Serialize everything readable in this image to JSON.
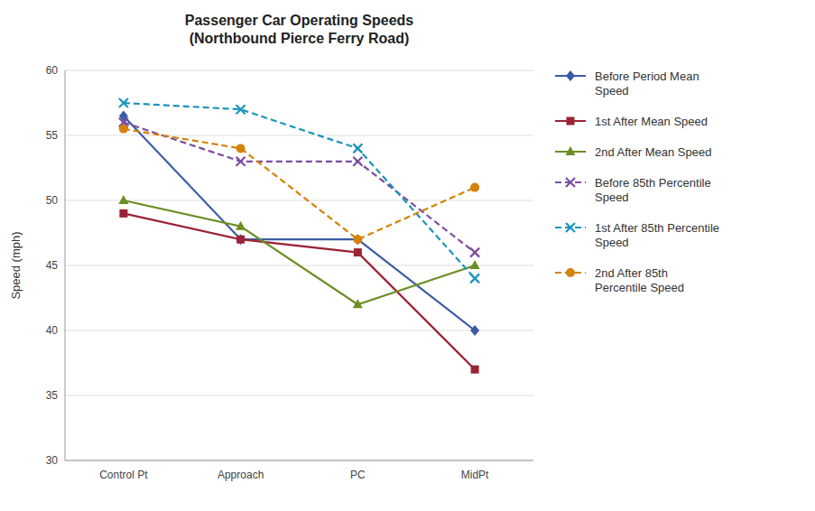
{
  "chart_data": {
    "type": "line",
    "title": "Passenger Car Operating Speeds\n(Northbound Pierce Ferry Road)",
    "y_label": "Speed (mph)",
    "categories": [
      "Control Pt",
      "Approach",
      "PC",
      "MidPt"
    ],
    "ylim": [
      30,
      60
    ],
    "yticks": [
      30,
      35,
      40,
      45,
      50,
      55,
      60
    ],
    "grid": true,
    "legend": "right",
    "series": [
      {
        "name": "Before Period Mean\nSpeed",
        "color": "#3B5BA5",
        "values": [
          56.5,
          47.0,
          47.0,
          40.0
        ],
        "marker": "diamond",
        "line_style": "solid"
      },
      {
        "name": "1st After Mean Speed",
        "color": "#9B2335",
        "values": [
          49.0,
          47.0,
          46.0,
          37.0
        ],
        "marker": "square",
        "line_style": "solid"
      },
      {
        "name": "2nd After Mean Speed",
        "color": "#6B8E23",
        "values": [
          50.0,
          48.0,
          42.0,
          45.0
        ],
        "marker": "triangle",
        "line_style": "solid"
      },
      {
        "name": "Before 85th Percentile\nSpeed",
        "color": "#7B4CA0",
        "values": [
          56.0,
          53.0,
          53.0,
          46.0
        ],
        "marker": "x",
        "line_style": "dashed"
      },
      {
        "name": "1st After 85th Percentile\nSpeed",
        "color": "#1A94BC",
        "values": [
          57.5,
          57.0,
          54.0,
          44.0
        ],
        "marker": "x",
        "line_style": "dashed"
      },
      {
        "name": "2nd After 85th\nPercentile Speed",
        "color": "#D4820A",
        "values": [
          55.5,
          54.0,
          47.0,
          51.0
        ],
        "marker": "circle",
        "line_style": "dashed"
      }
    ]
  }
}
